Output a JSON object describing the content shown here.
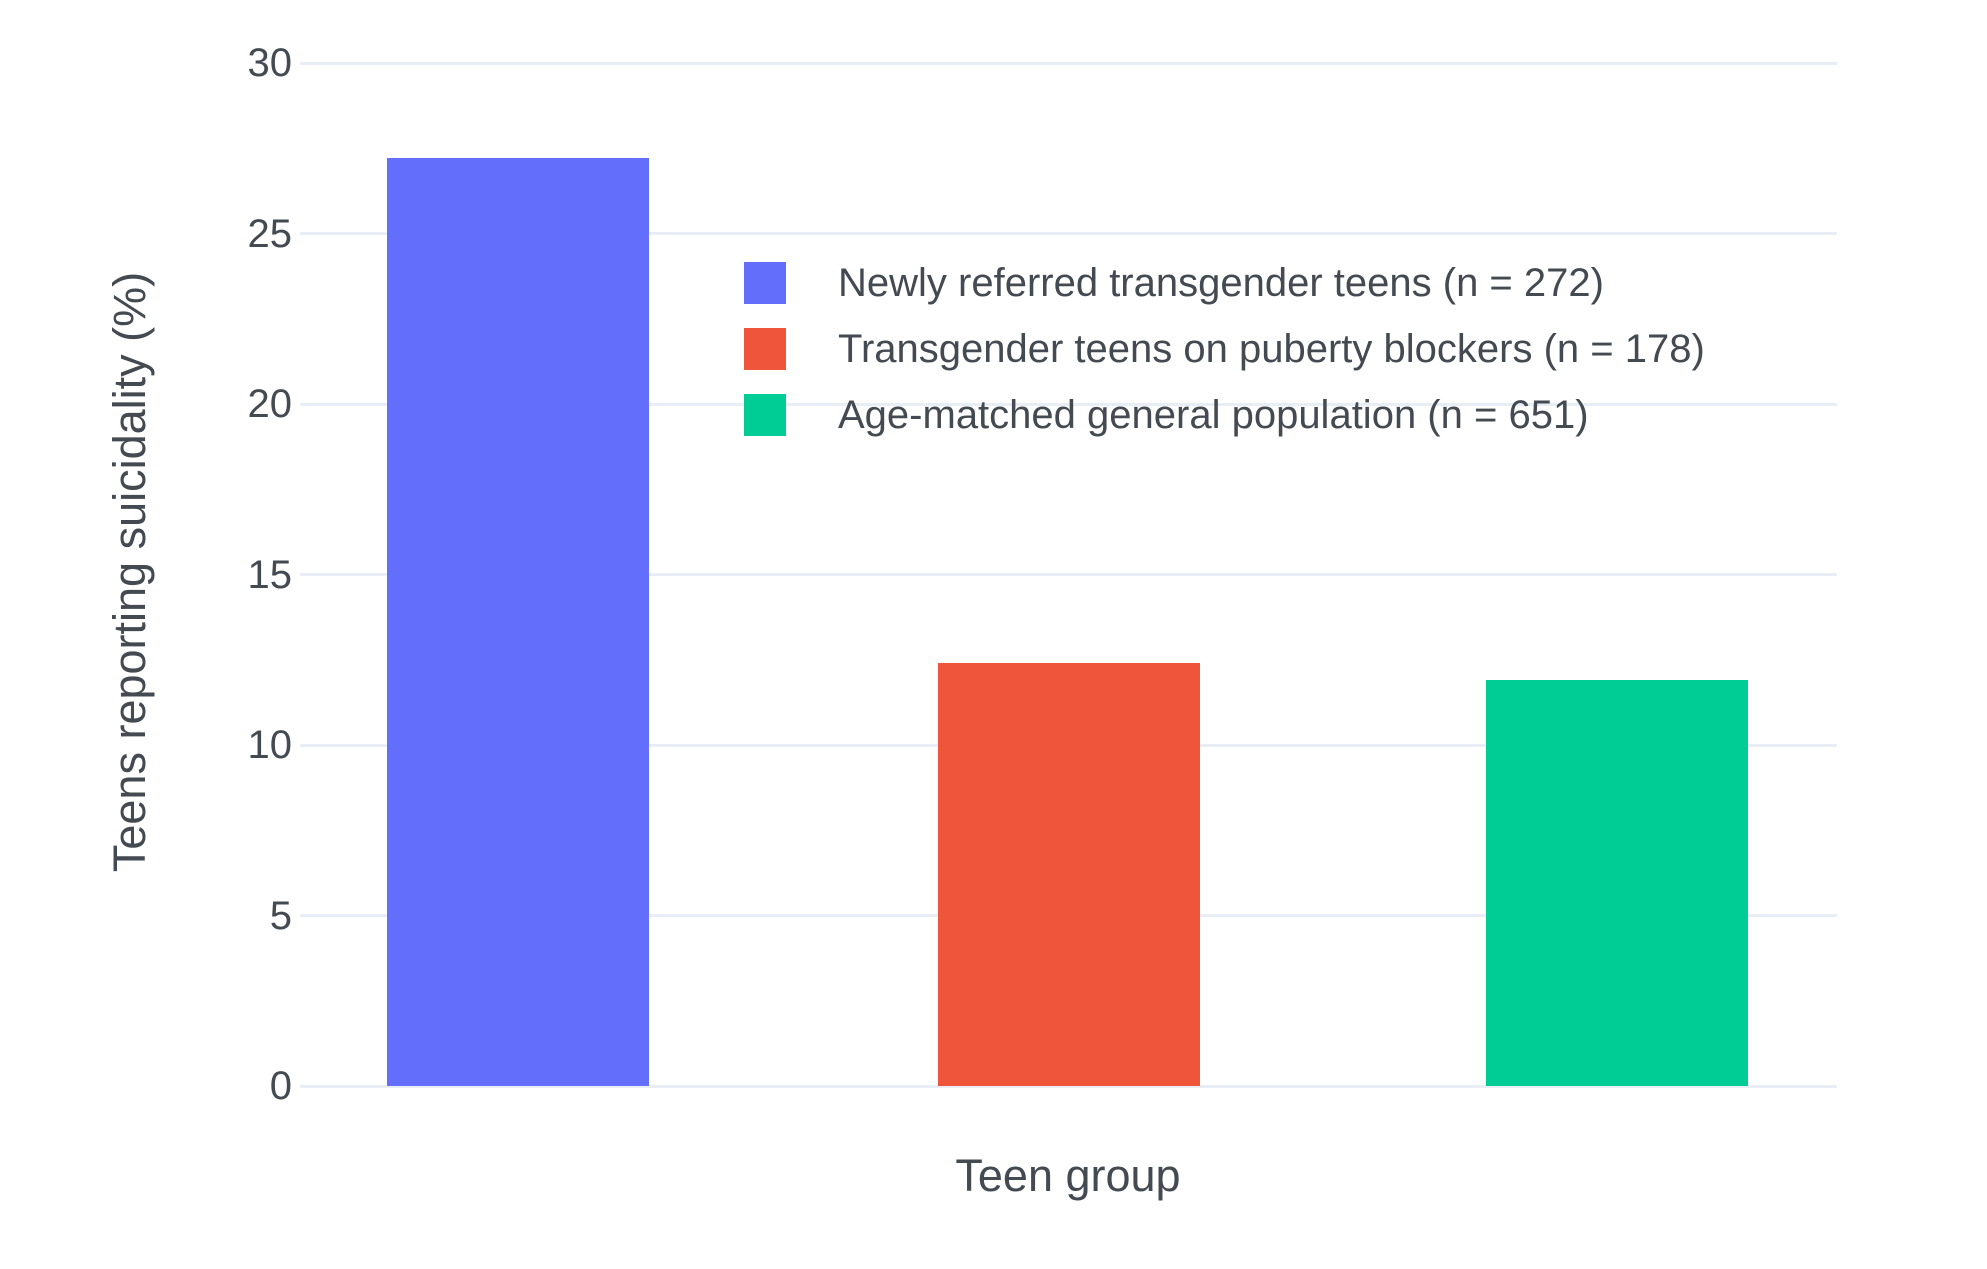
{
  "colors": {
    "background": "#ffffff",
    "grid": "#E8EDF6",
    "text": "#444A51"
  },
  "chart_data": {
    "type": "bar",
    "title": "",
    "xlabel": "Teen group",
    "ylabel": "Teens reporting suicidality (%)",
    "ylim": [
      0,
      30
    ],
    "yticks": [
      0,
      5,
      10,
      15,
      20,
      25,
      30
    ],
    "grid": true,
    "legend_position": "upper-left-of-center inside plot",
    "categories": [
      "Newly referred transgender teens (n = 272)",
      "Transgender teens on puberty blockers (n = 178)",
      "Age-matched general population (n = 651)"
    ],
    "series": [
      {
        "name": "Newly referred transgender teens (n = 272)",
        "value": 27.2,
        "color": "#636EFA"
      },
      {
        "name": "Transgender teens on puberty blockers (n = 178)",
        "value": 12.4,
        "color": "#EF553B"
      },
      {
        "name": "Age-matched general population (n = 651)",
        "value": 11.9,
        "color": "#00CC96"
      }
    ]
  }
}
